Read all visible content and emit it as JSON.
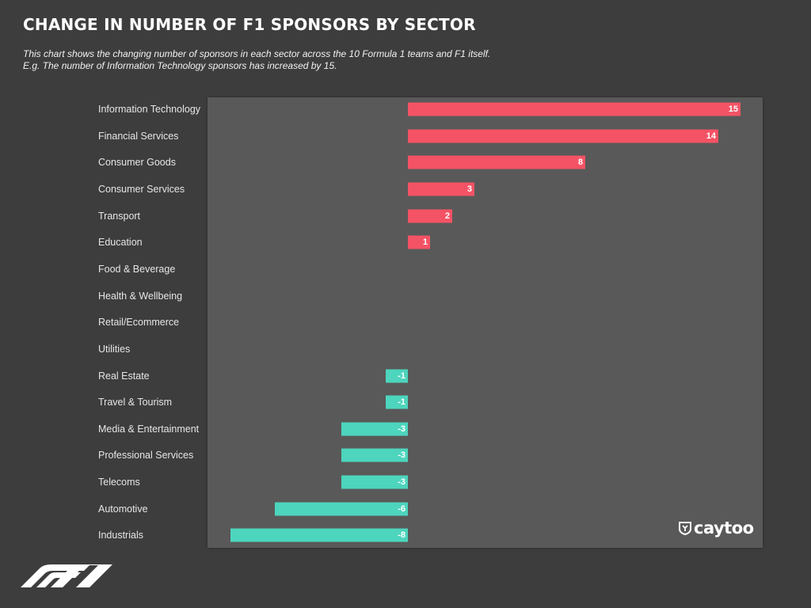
{
  "header": {
    "title": "CHANGE IN NUMBER OF F1 SPONSORS BY SECTOR",
    "subtitle_line1": "This chart shows the changing number of sponsors in each sector across the 10 Formula 1 teams and F1 itself.",
    "subtitle_line2": "E.g. The number of Information Technology sponsors has increased by 15."
  },
  "branding": {
    "caytoo": "caytoo",
    "f1_logo_text": "F1"
  },
  "colors": {
    "positive": "#f45365",
    "negative": "#4dd5bd",
    "background": "#3d3d3d",
    "plot_background": "#595959"
  },
  "chart_data": {
    "type": "bar",
    "orientation": "horizontal",
    "title": "CHANGE IN NUMBER OF F1 SPONSORS BY SECTOR",
    "xlim": [
      -8,
      15
    ],
    "grid": false,
    "categories": [
      "Information Technology",
      "Financial Services",
      "Consumer Goods",
      "Consumer Services",
      "Transport",
      "Education",
      "Food & Beverage",
      "Health & Wellbeing",
      "Retail/Ecommerce",
      "Utilities",
      "Real Estate",
      "Travel & Tourism",
      "Media & Entertainment",
      "Professional Services",
      "Telecoms",
      "Automotive",
      "Industrials"
    ],
    "values": [
      15,
      14,
      8,
      3,
      2,
      1,
      0,
      0,
      0,
      0,
      -1,
      -1,
      -3,
      -3,
      -3,
      -6,
      -8
    ],
    "value_labels": [
      "15",
      "14",
      "8",
      "3",
      "2",
      "1",
      "",
      "",
      "",
      "",
      "-1",
      "-1",
      "-3",
      "-3",
      "-3",
      "-6",
      "-8"
    ]
  }
}
